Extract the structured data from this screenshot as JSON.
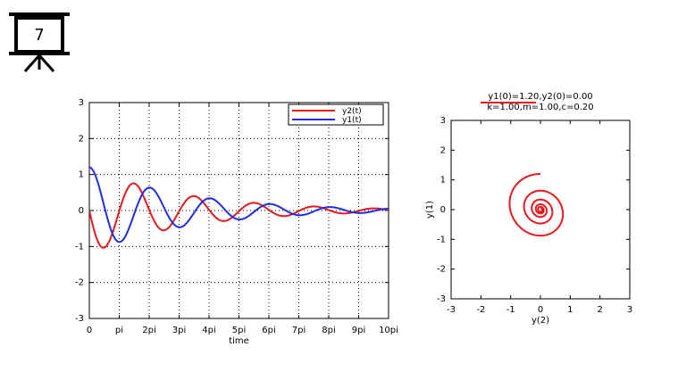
{
  "slide": {
    "number": "7",
    "icon": "presentation-board-icon"
  },
  "colors": {
    "y2": "#e41a1c",
    "y1": "#1f2fe0",
    "axis": "#000000",
    "grid": "#000000"
  },
  "chart_data": [
    {
      "type": "line",
      "title": "",
      "xlabel": "time",
      "ylabel": "",
      "xlim": [
        0,
        10
      ],
      "ylim": [
        -3,
        3
      ],
      "x_unit": "pi",
      "xticks": [
        0,
        1,
        2,
        3,
        4,
        5,
        6,
        7,
        8,
        9,
        10
      ],
      "xtick_labels": [
        "0",
        "pi",
        "2pi",
        "3pi",
        "4pi",
        "5pi",
        "6pi",
        "7pi",
        "8pi",
        "9pi",
        "10pi"
      ],
      "yticks": [
        -3,
        -2,
        -1,
        0,
        1,
        2,
        3
      ],
      "ytick_labels": [
        "-3",
        "-2",
        "-1",
        "0",
        "1",
        "2",
        "3"
      ],
      "grid": true,
      "legend_position": "top-right",
      "series": [
        {
          "name": "y2(t)",
          "color": "#e41a1c"
        },
        {
          "name": "y1(t)",
          "color": "#1f2fe0"
        }
      ],
      "model": {
        "y1_0": 1.2,
        "y2_0": 0.0,
        "k": 1.0,
        "m": 1.0,
        "c": 0.2
      }
    },
    {
      "type": "line",
      "title_line1": "y1(0)=1.20,y2(0)=0.00",
      "title_line2": "k=1.00,m=1.00,c=0.20",
      "xlabel": "y(2)",
      "ylabel": "y(1)",
      "xlim": [
        -3,
        3
      ],
      "ylim": [
        -3,
        3
      ],
      "xticks": [
        -3,
        -2,
        -1,
        0,
        1,
        2,
        3
      ],
      "xtick_labels": [
        "-3",
        "-2",
        "-1",
        "0",
        "1",
        "2",
        "3"
      ],
      "yticks": [
        -3,
        -2,
        -1,
        0,
        1,
        2,
        3
      ],
      "ytick_labels": [
        "-3",
        "-2",
        "-1",
        "0",
        "1",
        "2",
        "3"
      ],
      "grid": false,
      "series": [
        {
          "color": "#e41a1c"
        }
      ]
    }
  ]
}
